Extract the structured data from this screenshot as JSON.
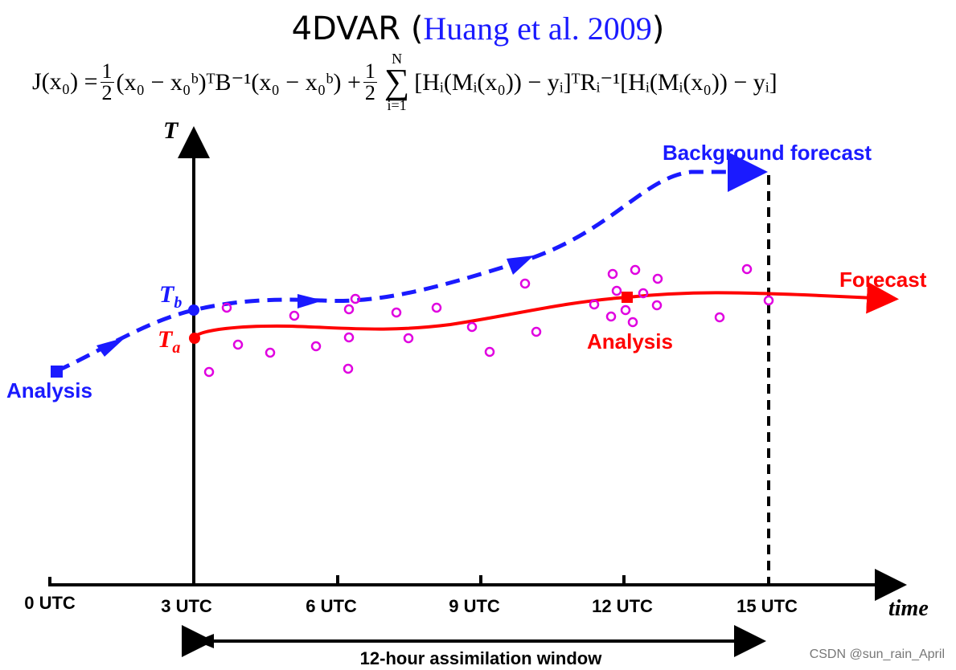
{
  "title": {
    "prefix": "4DVAR (",
    "citation": "Huang et al. 2009",
    "suffix": ")"
  },
  "formula": {
    "lhs": "J(x₀) =",
    "half": "1",
    "two": "2",
    "term1": "(x₀ − x₀ᵇ)ᵀB⁻¹(x₀ − x₀ᵇ) +",
    "sum_upper": "N",
    "sum_lower": "i=1",
    "term2": "[Hᵢ(Mᵢ(x₀)) − yᵢ]ᵀRᵢ⁻¹[Hᵢ(Mᵢ(x₀)) − yᵢ]"
  },
  "labels": {
    "y_axis": "T",
    "x_axis": "time",
    "tb": "T",
    "tb_sub": "b",
    "ta": "T",
    "ta_sub": "a",
    "analysis_left": "Analysis",
    "analysis_right": "Analysis",
    "background_forecast": "Background forecast",
    "forecast": "Forecast",
    "window": "12-hour assimilation window"
  },
  "ticks": [
    "0 UTC",
    "3 UTC",
    "6 UTC",
    "9 UTC",
    "12 UTC",
    "15 UTC"
  ],
  "colors": {
    "blue": "#1a1aff",
    "red": "#ff0000",
    "obs": "#e000e0",
    "axis": "#000000"
  },
  "watermark": "CSDN @sun_rain_April"
}
